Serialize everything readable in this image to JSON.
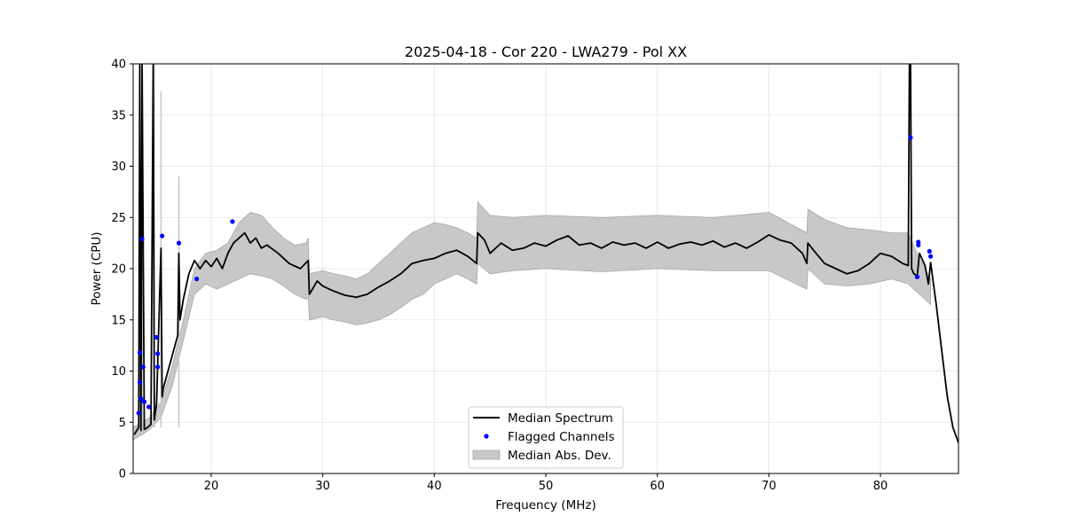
{
  "chart_data": {
    "type": "line",
    "title": "2025-04-18 - Cor 220 - LWA279 - Pol XX",
    "xlabel": "Frequency (MHz)",
    "ylabel": "Power (CPU)",
    "xlim": [
      13,
      87
    ],
    "ylim": [
      0,
      40
    ],
    "xticks": [
      20,
      30,
      40,
      50,
      60,
      70,
      80
    ],
    "yticks": [
      0,
      5,
      10,
      15,
      20,
      25,
      30,
      35,
      40
    ],
    "grid": true,
    "legend": {
      "location": "lower-center",
      "entries": [
        "Median Spectrum",
        "Flagged Channels",
        "Median Abs. Dev."
      ]
    },
    "series": [
      {
        "name": "Median Spectrum",
        "kind": "line",
        "color": "#000000",
        "x": [
          13.1,
          13.5,
          13.6,
          13.7,
          13.8,
          14.0,
          14.3,
          14.6,
          14.8,
          14.9,
          15.0,
          15.1,
          15.5,
          15.6,
          15.7,
          16.0,
          16.5,
          17.0,
          17.1,
          17.2,
          17.5,
          18.0,
          18.5,
          19.0,
          19.5,
          20.0,
          20.5,
          21.0,
          21.5,
          22.0,
          22.5,
          23.0,
          23.5,
          24.0,
          24.5,
          25.0,
          26.0,
          27.0,
          28.0,
          28.7,
          28.8,
          29.5,
          30.0,
          31.0,
          32.0,
          33.0,
          34.0,
          35.0,
          36.0,
          37.0,
          38.0,
          39.0,
          40.0,
          41.0,
          42.0,
          43.0,
          43.8,
          43.9,
          44.5,
          45.0,
          46.0,
          47.0,
          48.0,
          49.0,
          50.0,
          51.0,
          52.0,
          53.0,
          54.0,
          55.0,
          56.0,
          57.0,
          58.0,
          59.0,
          60.0,
          61.0,
          62.0,
          63.0,
          64.0,
          65.0,
          66.0,
          67.0,
          68.0,
          69.0,
          70.0,
          71.0,
          72.0,
          73.0,
          73.4,
          73.5,
          74.0,
          75.0,
          76.0,
          77.0,
          78.0,
          79.0,
          80.0,
          81.0,
          82.0,
          82.5,
          82.6,
          82.7,
          82.8,
          83.0,
          83.3,
          83.5,
          84.0,
          84.3,
          84.5,
          85.0,
          85.5,
          86.0,
          86.5,
          87.0
        ],
        "y": [
          3.8,
          4.5,
          40,
          4.2,
          40,
          4.3,
          4.5,
          4.8,
          40,
          5.2,
          6.0,
          6.8,
          22,
          7.5,
          8.3,
          9.5,
          11.5,
          13.5,
          21.5,
          15,
          17,
          19.5,
          20.8,
          20.0,
          20.8,
          20.2,
          21.0,
          20.0,
          21.5,
          22.5,
          23.0,
          23.5,
          22.5,
          23.0,
          22.0,
          22.3,
          21.5,
          20.5,
          20.0,
          20.8,
          17.5,
          18.8,
          18.3,
          17.8,
          17.4,
          17.2,
          17.5,
          18.2,
          18.8,
          19.5,
          20.5,
          20.8,
          21.0,
          21.5,
          21.8,
          21.2,
          20.5,
          23.5,
          22.8,
          21.5,
          22.5,
          21.8,
          22.0,
          22.5,
          22.2,
          22.8,
          23.2,
          22.3,
          22.5,
          22.0,
          22.6,
          22.3,
          22.5,
          22.0,
          22.6,
          22.0,
          22.4,
          22.6,
          22.3,
          22.7,
          22.1,
          22.5,
          22.0,
          22.6,
          23.3,
          22.8,
          22.5,
          21.5,
          20.5,
          22.5,
          21.8,
          20.5,
          20.0,
          19.5,
          19.8,
          20.5,
          21.5,
          21.2,
          20.5,
          20.3,
          40,
          40,
          20.0,
          19.5,
          19.3,
          21.5,
          20.3,
          18.5,
          20.6,
          16.5,
          12.0,
          7.5,
          4.5,
          3.0
        ]
      },
      {
        "name": "Median Abs. Dev.",
        "kind": "band",
        "color": "#c8c8c8",
        "x": [
          13.0,
          13.8,
          14.5,
          15.5,
          16.5,
          17.5,
          18.5,
          19.5,
          20.5,
          21.5,
          22.5,
          23.5,
          24.5,
          25.5,
          26.5,
          27.5,
          28.5,
          28.7,
          28.8,
          30.0,
          31.0,
          32.0,
          33.0,
          34.0,
          35.0,
          36.0,
          37.0,
          38.0,
          39.0,
          40.0,
          41.0,
          42.0,
          43.0,
          43.8,
          43.9,
          45.0,
          47.0,
          50.0,
          55.0,
          60.0,
          65.0,
          70.0,
          73.4,
          73.5,
          75.0,
          77.0,
          79.0,
          81.0,
          82.5,
          83.5,
          84.5
        ],
        "lower": [
          3.3,
          3.8,
          4.3,
          5.5,
          8.5,
          13.0,
          17.5,
          18.5,
          18.0,
          18.5,
          19.0,
          19.5,
          19.3,
          19.0,
          18.3,
          17.5,
          17.0,
          17.2,
          15.0,
          15.3,
          15.0,
          14.8,
          14.5,
          14.7,
          15.0,
          15.5,
          16.2,
          17.0,
          17.5,
          18.5,
          19.0,
          19.5,
          19.0,
          18.5,
          20.5,
          19.5,
          19.8,
          20.0,
          19.7,
          20.0,
          19.8,
          19.8,
          18.0,
          20.0,
          18.5,
          18.3,
          18.5,
          19.0,
          18.5,
          17.5,
          16.5
        ],
        "upper": [
          4.5,
          5.0,
          5.5,
          7.0,
          10.5,
          15.0,
          20.0,
          21.5,
          21.8,
          22.5,
          24.5,
          25.5,
          25.2,
          24.0,
          23.0,
          22.3,
          22.5,
          23.0,
          19.5,
          19.8,
          19.5,
          19.3,
          19.0,
          19.5,
          20.5,
          21.5,
          22.5,
          23.5,
          24.0,
          24.5,
          24.3,
          24.0,
          23.5,
          23.0,
          26.5,
          25.2,
          25.0,
          25.2,
          25.0,
          25.2,
          25.0,
          25.5,
          23.5,
          25.8,
          24.8,
          24.0,
          23.8,
          23.5,
          23.5,
          21.0,
          19.0
        ]
      },
      {
        "name": "Median Abs. Dev. (spikes)",
        "kind": "spikes",
        "color": "#c8c8c8",
        "x": [
          13.6,
          13.8,
          14.9,
          15.5,
          17.1
        ],
        "y": [
          40,
          40,
          40,
          37.3,
          29.0
        ]
      }
    ],
    "flagged_channels": {
      "name": "Flagged Channels",
      "color": "#0000ff",
      "x": [
        13.5,
        13.6,
        13.6,
        13.7,
        13.8,
        13.9,
        14.0,
        14.4,
        15.1,
        15.2,
        15.2,
        15.6,
        17.1,
        18.7,
        21.9,
        82.7,
        83.3,
        83.4,
        83.4,
        84.4,
        84.5
      ],
      "y": [
        5.9,
        8.9,
        11.8,
        7.3,
        22.9,
        10.4,
        7.0,
        6.5,
        13.3,
        11.7,
        10.4,
        23.2,
        22.5,
        19.0,
        24.6,
        32.8,
        19.2,
        22.6,
        22.3,
        21.7,
        21.2
      ]
    }
  }
}
